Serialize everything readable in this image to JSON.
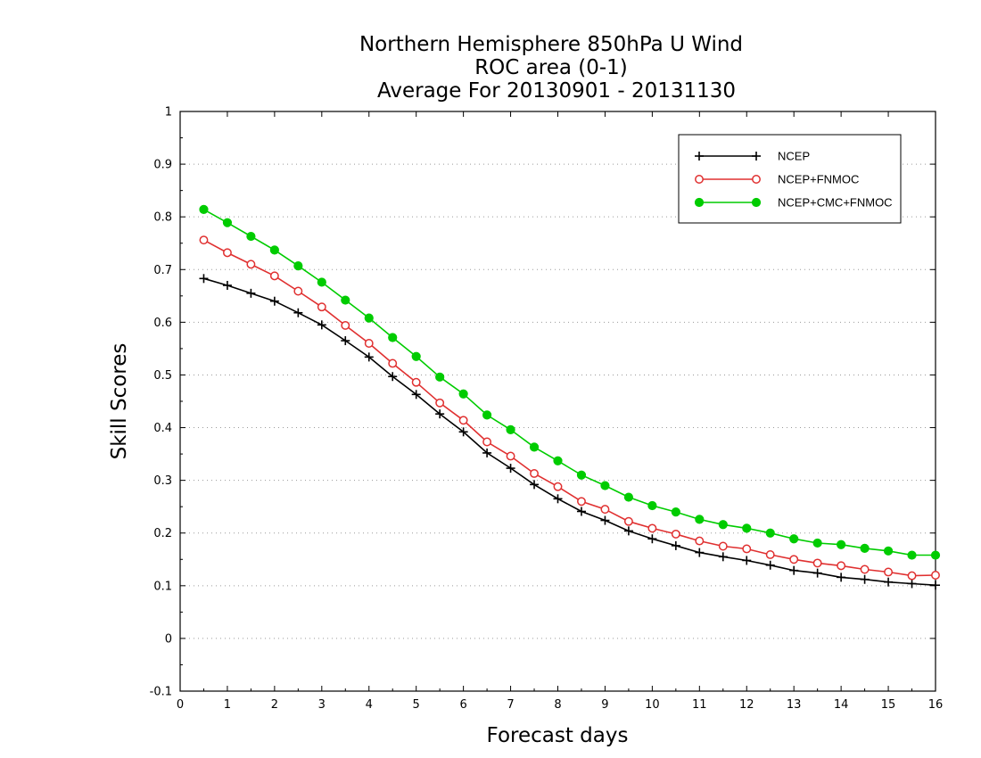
{
  "chart_data": {
    "type": "line",
    "title": [
      "Northern Hemisphere 850hPa U Wind",
      "ROC area (0-1)",
      "Average For 20130901 - 20131130"
    ],
    "xlabel": "Forecast days",
    "ylabel": "Skill Scores",
    "xlim": [
      0,
      16
    ],
    "ylim": [
      -0.1,
      1
    ],
    "xticks": [
      0,
      1,
      2,
      3,
      4,
      5,
      6,
      7,
      8,
      9,
      10,
      11,
      12,
      13,
      14,
      15,
      16
    ],
    "yticks": [
      -0.1,
      0,
      0.1,
      0.2,
      0.3,
      0.4,
      0.5,
      0.6,
      0.7,
      0.8,
      0.9,
      1
    ],
    "ytick_labels": [
      "-0.1",
      "0",
      "0.1",
      "0.2",
      "0.3",
      "0.4",
      "0.5",
      "0.6",
      "0.7",
      "0.8",
      "0.9",
      "1"
    ],
    "grid": "horizontal dotted",
    "legend_position": "top-right",
    "x": [
      0.5,
      1,
      1.5,
      2,
      2.5,
      3,
      3.5,
      4,
      4.5,
      5,
      5.5,
      6,
      6.5,
      7,
      7.5,
      8,
      8.5,
      9,
      9.5,
      10,
      10.5,
      11,
      11.5,
      12,
      12.5,
      13,
      13.5,
      14,
      14.5,
      15,
      15.5,
      16
    ],
    "series": [
      {
        "name": "NCEP",
        "color": "#000000",
        "marker": "plus",
        "values": [
          0.683,
          0.67,
          0.655,
          0.64,
          0.618,
          0.595,
          0.565,
          0.534,
          0.497,
          0.463,
          0.426,
          0.392,
          0.352,
          0.323,
          0.292,
          0.265,
          0.241,
          0.224,
          0.204,
          0.189,
          0.176,
          0.163,
          0.155,
          0.148,
          0.139,
          0.129,
          0.124,
          0.116,
          0.112,
          0.107,
          0.104,
          0.101
        ]
      },
      {
        "name": "NCEP+FNMOC",
        "color": "#e03030",
        "marker": "open-circle",
        "values": [
          0.756,
          0.732,
          0.71,
          0.688,
          0.659,
          0.629,
          0.594,
          0.56,
          0.522,
          0.486,
          0.447,
          0.414,
          0.373,
          0.346,
          0.313,
          0.288,
          0.26,
          0.245,
          0.222,
          0.209,
          0.198,
          0.185,
          0.175,
          0.17,
          0.159,
          0.15,
          0.143,
          0.138,
          0.131,
          0.126,
          0.119,
          0.12
        ]
      },
      {
        "name": "NCEP+CMC+FNMOC",
        "color": "#00cc00",
        "marker": "filled-circle",
        "values": [
          0.814,
          0.789,
          0.763,
          0.737,
          0.707,
          0.676,
          0.642,
          0.608,
          0.571,
          0.535,
          0.496,
          0.464,
          0.424,
          0.396,
          0.363,
          0.337,
          0.31,
          0.29,
          0.268,
          0.252,
          0.24,
          0.226,
          0.216,
          0.209,
          0.2,
          0.189,
          0.181,
          0.178,
          0.171,
          0.166,
          0.158,
          0.158
        ]
      }
    ]
  }
}
